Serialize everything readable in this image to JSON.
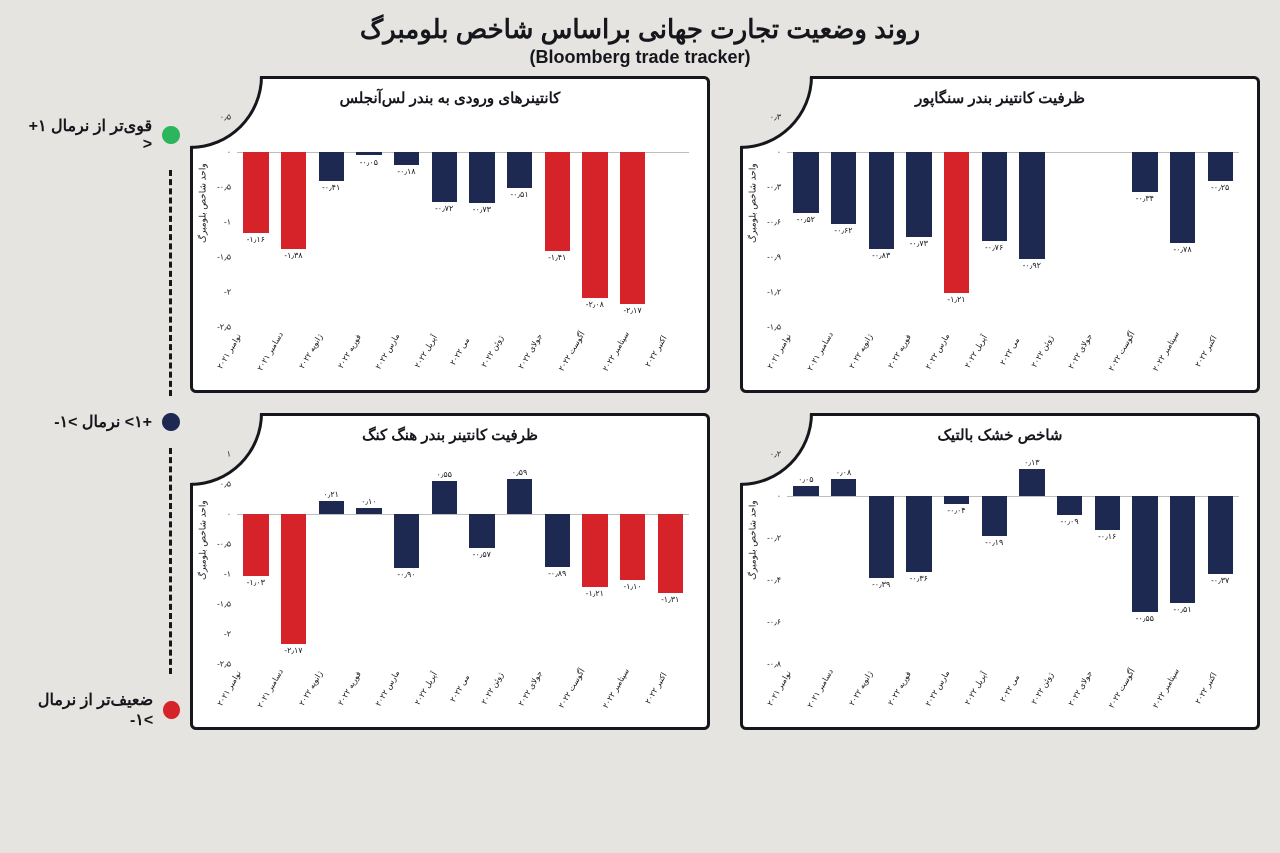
{
  "title": "روند وضعیت تجارت جهانی براساس شاخص بلومبرگ",
  "subtitle": "(Bloomberg trade tracker)",
  "y_label": "واحد شاخص بلومبرگ",
  "colors": {
    "strong": "#2bb55c",
    "normal": "#1d2951",
    "weak": "#d6232a",
    "bg": "#e6e4e0",
    "card": "#ffffff",
    "border": "#16161d"
  },
  "legend": {
    "strong": "قوی‌تر از نرمال ۱+<",
    "normal": "+۱> نرمال >۱-",
    "weak": "ضعیف‌تر از نرمال >۱-"
  },
  "months": [
    "نوامبر ۲۰۲۱",
    "دسامبر ۲۰۲۱",
    "ژانویه ۲۰۲۲",
    "فوریه ۲۰۲۲",
    "مارس ۲۰۲۲",
    "آپریل ۲۰۲۲",
    "می ۲۰۲۲",
    "ژوئن ۲۰۲۲",
    "جولای ۲۰۲۲",
    "آگوست ۲۰۲۲",
    "سپتامبر ۲۰۲۲",
    "اکتبر ۲۰۲۲"
  ],
  "charts": [
    {
      "title": "کانتینرهای ورودی به بندر لس‌آنجلس",
      "ylim": [
        -2.5,
        0.5
      ],
      "ytick_step": 0.5,
      "values": [
        -1.16,
        -1.38,
        -0.41,
        -0.05,
        -0.18,
        -0.72,
        -0.73,
        -0.51,
        -1.41,
        -2.08,
        -2.17,
        null
      ],
      "bar_colors": [
        "weak",
        "weak",
        "normal",
        "normal",
        "normal",
        "normal",
        "normal",
        "normal",
        "weak",
        "weak",
        "weak",
        null
      ]
    },
    {
      "title": "ظرفیت کانتینر بندر سنگاپور",
      "ylim": [
        -1.5,
        0.3
      ],
      "ytick_step": 0.3,
      "values": [
        -0.52,
        -0.62,
        -0.83,
        -0.73,
        -1.21,
        -0.76,
        -0.92,
        null,
        null,
        -0.34,
        -0.78,
        -0.25
      ],
      "bar_colors": [
        "normal",
        "normal",
        "normal",
        "normal",
        "weak",
        "normal",
        "normal",
        null,
        null,
        "normal",
        "normal",
        "normal"
      ]
    },
    {
      "title": "ظرفیت کانتینر بندر هنگ کنگ",
      "ylim": [
        -2.5,
        1.0
      ],
      "ytick_step": 0.5,
      "values": [
        -1.03,
        -2.17,
        0.21,
        0.1,
        -0.9,
        0.55,
        -0.57,
        0.59,
        -0.89,
        -1.21,
        -1.1,
        -1.31
      ],
      "bar_colors": [
        "weak",
        "weak",
        "normal",
        "normal",
        "normal",
        "normal",
        "normal",
        "normal",
        "normal",
        "weak",
        "weak",
        "weak"
      ]
    },
    {
      "title": "شاخص خشک بالتیک",
      "ylim": [
        -0.8,
        0.2
      ],
      "ytick_step": 0.2,
      "values": [
        0.05,
        0.08,
        -0.39,
        -0.36,
        -0.04,
        -0.19,
        0.13,
        -0.09,
        -0.16,
        -0.55,
        -0.51,
        -0.37
      ],
      "bar_colors": [
        "normal",
        "normal",
        "normal",
        "normal",
        "normal",
        "normal",
        "normal",
        "normal",
        "normal",
        "normal",
        "normal",
        "normal"
      ]
    }
  ]
}
